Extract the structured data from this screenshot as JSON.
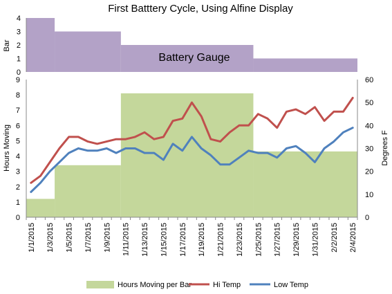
{
  "chart_data": {
    "type": "combo",
    "title": "First Batttery Cycle, Using Alfine Display",
    "dates": [
      "1/1/2015",
      "1/2/2015",
      "1/3/2015",
      "1/4/2015",
      "1/5/2015",
      "1/6/2015",
      "1/7/2015",
      "1/8/2015",
      "1/9/2015",
      "1/10/2015",
      "1/11/2015",
      "1/12/2015",
      "1/13/2015",
      "1/14/2015",
      "1/15/2015",
      "1/16/2015",
      "1/17/2015",
      "1/18/2015",
      "1/19/2015",
      "1/20/2015",
      "1/21/2015",
      "1/22/2015",
      "1/23/2015",
      "1/24/2015",
      "1/25/2015",
      "1/26/2015",
      "1/27/2015",
      "1/28/2015",
      "1/29/2015",
      "1/30/2015",
      "1/31/2015",
      "2/1/2015",
      "2/2/2015",
      "2/3/2015",
      "2/4/2015"
    ],
    "x_tick_labels": [
      "1/1/2015",
      "1/3/2015",
      "1/5/2015",
      "1/7/2015",
      "1/9/2015",
      "1/11/2015",
      "1/13/2015",
      "1/15/2015",
      "1/17/2015",
      "1/19/2015",
      "1/21/2015",
      "1/23/2015",
      "1/25/2015",
      "1/27/2015",
      "1/29/2015",
      "1/31/2015",
      "2/2/2015",
      "2/4/2015"
    ],
    "top_panel": {
      "ylabel": "Bar",
      "ylim": [
        0,
        4
      ],
      "yticks": [
        "0",
        "1",
        "2",
        "3",
        "4"
      ],
      "annotation": "Battery Gauge",
      "color": "#b3a2c7",
      "steps": [
        {
          "start": "1/1/2015",
          "end": "1/4/2015",
          "value": 4
        },
        {
          "start": "1/4/2015",
          "end": "1/11/2015",
          "value": 3
        },
        {
          "start": "1/11/2015",
          "end": "1/25/2015",
          "value": 2
        },
        {
          "start": "1/25/2015",
          "end": "2/4/2015",
          "value": 1
        }
      ]
    },
    "bottom_panel": {
      "ylabel_left": "Hours Moving",
      "ylabel_right": "Degrees F",
      "ylim_left": [
        0,
        9
      ],
      "ylim_right": [
        0,
        60
      ],
      "yticks_left": [
        "0",
        "1",
        "2",
        "3",
        "4",
        "5",
        "6",
        "7",
        "8",
        "9"
      ],
      "yticks_right": [
        "0",
        "10",
        "20",
        "30",
        "40",
        "50",
        "60"
      ],
      "area": {
        "name": "Hours Moving per Bar",
        "color": "#c4d79b",
        "steps": [
          {
            "start": "1/1/2015",
            "end": "1/4/2015",
            "value": 1.2
          },
          {
            "start": "1/4/2015",
            "end": "1/11/2015",
            "value": 3.4
          },
          {
            "start": "1/11/2015",
            "end": "1/25/2015",
            "value": 8.1
          },
          {
            "start": "1/25/2015",
            "end": "2/4/2015",
            "value": 4.3
          }
        ]
      },
      "series": [
        {
          "name": "Hi Temp",
          "color": "#c0504d",
          "values": [
            15,
            18,
            24,
            30,
            35,
            35,
            33,
            32,
            33,
            34,
            34,
            35,
            37,
            34,
            35,
            42,
            43,
            50,
            44,
            34,
            33,
            37,
            40,
            40,
            45,
            43,
            39,
            46,
            47,
            45,
            48,
            42,
            46,
            46,
            52
          ]
        },
        {
          "name": "Low Temp",
          "color": "#4f81bd",
          "values": [
            11,
            15,
            20,
            24,
            28,
            30,
            29,
            29,
            30,
            28,
            30,
            30,
            28,
            28,
            25,
            32,
            29,
            35,
            30,
            27,
            23,
            23,
            26,
            29,
            28,
            28,
            26,
            30,
            31,
            28,
            24,
            30,
            33,
            37,
            39
          ]
        }
      ]
    }
  }
}
